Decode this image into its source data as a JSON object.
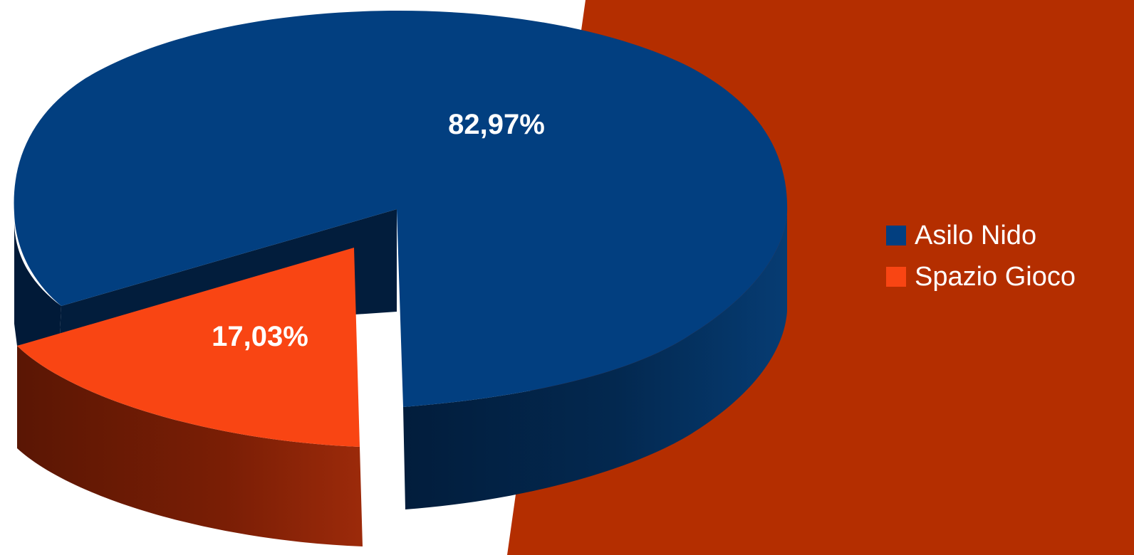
{
  "chart_data": {
    "type": "pie",
    "style": "3d-exploded",
    "categories": [
      "Asilo Nido",
      "Spazio Gioco"
    ],
    "values": [
      82.97,
      17.03
    ],
    "data_labels": [
      "82,97%",
      "17,03%"
    ],
    "colors": [
      "#023F80",
      "#F94513"
    ],
    "legend": {
      "position": "right",
      "entries": [
        "Asilo Nido",
        "Spazio Gioco"
      ]
    }
  },
  "theme": {
    "background_panel": "#B42E00",
    "page_background": "#FFFFFF",
    "label_color": "#FFFFFF"
  }
}
